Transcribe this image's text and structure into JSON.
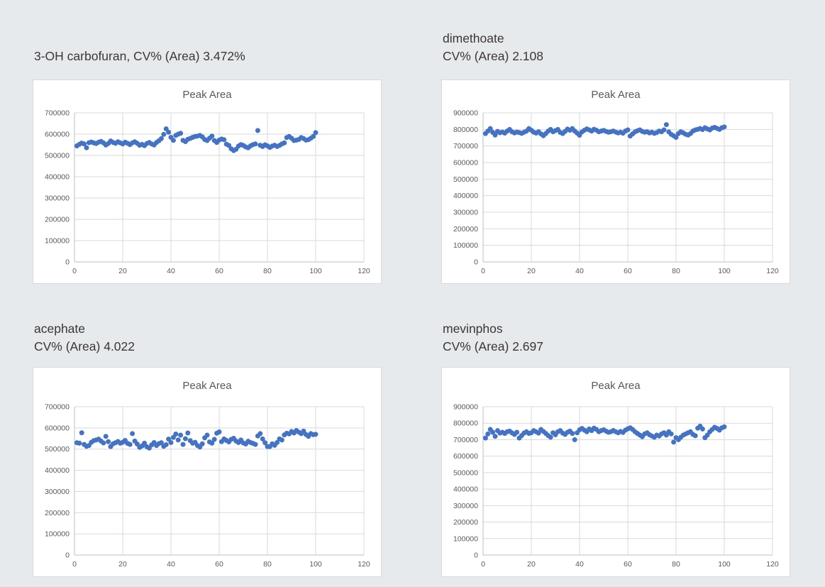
{
  "page": {
    "background": "#e7eaec",
    "panel_background": "#ffffff",
    "panel_border": "#d9d9d9",
    "grid_color": "#d9d9d9",
    "axis_color": "#bfbfbf",
    "tick_color": "#595959",
    "chart_title_color": "#595959",
    "label_color": "#3b3734",
    "marker_color": "#4472c4"
  },
  "chart_data": [
    {
      "type": "scatter",
      "label_line1": "3-OH carbofuran, CV% (Area) 3.472%",
      "label_line2": "",
      "title": "Peak Area",
      "xlabel": "",
      "ylabel": "",
      "x_min": 0,
      "x_max": 120,
      "x_step": 20,
      "y_min": 0,
      "y_max": 700000,
      "y_step": 100000,
      "x_start": 1,
      "legend": "off",
      "grid": "on",
      "values": [
        545000,
        552000,
        558000,
        554000,
        536000,
        560000,
        563000,
        559000,
        556000,
        562000,
        566000,
        559000,
        549000,
        556000,
        568000,
        561000,
        557000,
        564000,
        559000,
        554000,
        562000,
        557000,
        551000,
        559000,
        564000,
        557000,
        548000,
        552000,
        546000,
        556000,
        561000,
        554000,
        549000,
        561000,
        569000,
        579000,
        599000,
        625000,
        609000,
        585000,
        571000,
        594000,
        600000,
        604000,
        571000,
        565000,
        576000,
        580000,
        585000,
        589000,
        591000,
        594000,
        587000,
        575000,
        570000,
        581000,
        591000,
        570000,
        561000,
        572000,
        577000,
        574000,
        553000,
        547000,
        531000,
        523000,
        529000,
        544000,
        551000,
        547000,
        540000,
        536000,
        545000,
        551000,
        554000,
        617000,
        548000,
        542000,
        550000,
        545000,
        538000,
        544000,
        548000,
        542000,
        547000,
        554000,
        559000,
        584000,
        589000,
        581000,
        570000,
        572000,
        575000,
        584000,
        579000,
        572000,
        574000,
        581000,
        589000,
        607000
      ]
    },
    {
      "type": "scatter",
      "label_line1": "dimethoate",
      "label_line2": "CV% (Area) 2.108",
      "title": "Peak Area",
      "xlabel": "",
      "ylabel": "",
      "x_min": 0,
      "x_max": 120,
      "x_step": 20,
      "y_min": 0,
      "y_max": 900000,
      "y_step": 100000,
      "x_start": 1,
      "legend": "off",
      "grid": "on",
      "values": [
        775000,
        790000,
        805000,
        782000,
        766000,
        788000,
        780000,
        784000,
        778000,
        790000,
        800000,
        786000,
        779000,
        784000,
        781000,
        776000,
        783000,
        790000,
        805000,
        795000,
        783000,
        778000,
        786000,
        773000,
        762000,
        775000,
        790000,
        800000,
        786000,
        793000,
        800000,
        782000,
        775000,
        788000,
        802000,
        795000,
        805000,
        790000,
        778000,
        765000,
        785000,
        795000,
        803000,
        797000,
        790000,
        801000,
        795000,
        786000,
        790000,
        794000,
        788000,
        783000,
        786000,
        790000,
        784000,
        779000,
        783000,
        777000,
        790000,
        797000,
        760000,
        773000,
        785000,
        792000,
        797000,
        788000,
        783000,
        786000,
        779000,
        783000,
        776000,
        781000,
        790000,
        786000,
        797000,
        829000,
        785000,
        770000,
        762000,
        752000,
        775000,
        786000,
        779000,
        771000,
        766000,
        775000,
        790000,
        797000,
        801000,
        805000,
        799000,
        810000,
        803000,
        797000,
        808000,
        812000,
        806000,
        800000,
        810000,
        815000
      ]
    },
    {
      "type": "scatter",
      "label_line1": "acephate",
      "label_line2": "CV% (Area) 4.022",
      "title": "Peak Area",
      "xlabel": "",
      "ylabel": "",
      "x_min": 0,
      "x_max": 120,
      "x_step": 20,
      "y_min": 0,
      "y_max": 700000,
      "y_step": 100000,
      "x_start": 1,
      "legend": "off",
      "grid": "on",
      "values": [
        530000,
        528000,
        577000,
        522000,
        513000,
        517000,
        532000,
        540000,
        543000,
        547000,
        538000,
        529000,
        560000,
        535000,
        512000,
        525000,
        530000,
        536000,
        528000,
        532000,
        541000,
        527000,
        522000,
        573000,
        538000,
        524000,
        508000,
        515000,
        528000,
        511000,
        505000,
        520000,
        531000,
        517000,
        526000,
        530000,
        513000,
        521000,
        547000,
        531000,
        555000,
        571000,
        543000,
        566000,
        522000,
        549000,
        576000,
        540000,
        528000,
        532000,
        517000,
        510000,
        525000,
        553000,
        566000,
        534000,
        528000,
        546000,
        575000,
        581000,
        535000,
        548000,
        541000,
        534000,
        546000,
        551000,
        538000,
        531000,
        543000,
        529000,
        524000,
        537000,
        531000,
        527000,
        522000,
        562000,
        573000,
        548000,
        530000,
        512000,
        512000,
        525000,
        518000,
        531000,
        548000,
        543000,
        567000,
        575000,
        572000,
        583000,
        576000,
        588000,
        580000,
        573000,
        585000,
        569000,
        560000,
        573000,
        568000,
        570000
      ]
    },
    {
      "type": "scatter",
      "label_line1": "mevinphos",
      "label_line2": "CV% (Area) 2.697",
      "title": "Peak Area",
      "xlabel": "",
      "ylabel": "",
      "x_min": 0,
      "x_max": 120,
      "x_step": 20,
      "y_min": 0,
      "y_max": 900000,
      "y_step": 100000,
      "x_start": 1,
      "legend": "off",
      "grid": "on",
      "values": [
        710000,
        735000,
        762000,
        745000,
        720000,
        755000,
        740000,
        745000,
        738000,
        748000,
        752000,
        741000,
        732000,
        745000,
        710000,
        725000,
        740000,
        748000,
        738000,
        742000,
        755000,
        748000,
        740000,
        762000,
        750000,
        738000,
        725000,
        715000,
        742000,
        730000,
        748000,
        755000,
        740000,
        732000,
        745000,
        752000,
        738000,
        700000,
        742000,
        760000,
        768000,
        758000,
        748000,
        765000,
        755000,
        770000,
        762000,
        748000,
        755000,
        760000,
        752000,
        745000,
        748000,
        756000,
        748000,
        742000,
        750000,
        744000,
        758000,
        766000,
        772000,
        762000,
        748000,
        738000,
        728000,
        718000,
        735000,
        742000,
        730000,
        722000,
        715000,
        728000,
        722000,
        735000,
        742000,
        728000,
        748000,
        735000,
        685000,
        712000,
        700000,
        715000,
        728000,
        735000,
        742000,
        748000,
        732000,
        724000,
        770000,
        782000,
        765000,
        712000,
        728000,
        748000,
        762000,
        775000,
        768000,
        758000,
        772000,
        778000
      ]
    }
  ]
}
